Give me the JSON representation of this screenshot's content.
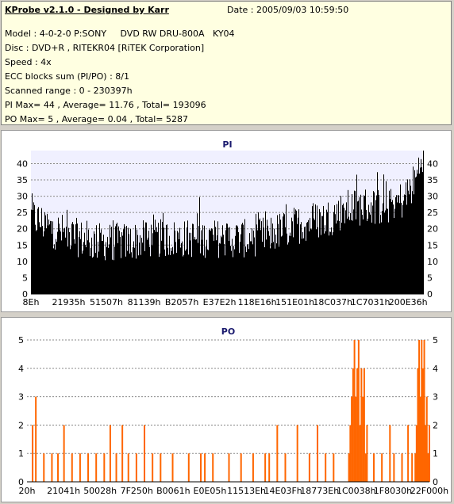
{
  "header": {
    "app_title": "KProbe v2.1.0 - Designed by Karr",
    "date": "Date : 2005/09/03 10:59:50",
    "lines": [
      "Model : 4-0-2-0 P:SONY     DVD RW DRU-800A   KY04",
      "Disc : DVD+R , RITEKR04 [RiTEK Corporation]",
      "Speed : 4x",
      "ECC blocks sum (PI/PO) : 8/1",
      "Scanned range : 0 - 230397h",
      "PI Max= 44 , Average= 11.76 , Total= 193096",
      "PO Max= 5 , Average= 0.04 , Total= 5287"
    ]
  },
  "chart_data": [
    {
      "type": "bar",
      "title": "PI",
      "xlabel": "",
      "ylabel": "",
      "ylim": [
        0,
        44
      ],
      "yticks": [
        0,
        5,
        10,
        15,
        20,
        25,
        30,
        35,
        40
      ],
      "x_tick_labels": [
        "8Eh",
        "21935h",
        "51507h",
        "81139h",
        "B2057h",
        "E37E2h",
        "118E16h",
        "151E01h",
        "18C037h",
        "1C7031h",
        "200E36h"
      ],
      "grid": true,
      "color": "#000000",
      "max": 44,
      "average": 11.76,
      "profile": [
        [
          0,
          24
        ],
        [
          0.05,
          20
        ],
        [
          0.1,
          18
        ],
        [
          0.15,
          16
        ],
        [
          0.2,
          16
        ],
        [
          0.25,
          16
        ],
        [
          0.3,
          17
        ],
        [
          0.35,
          17
        ],
        [
          0.4,
          17
        ],
        [
          0.45,
          17
        ],
        [
          0.5,
          17
        ],
        [
          0.55,
          17
        ],
        [
          0.6,
          18
        ],
        [
          0.65,
          20
        ],
        [
          0.7,
          22
        ],
        [
          0.75,
          23
        ],
        [
          0.8,
          26
        ],
        [
          0.85,
          27
        ],
        [
          0.9,
          27
        ],
        [
          0.95,
          29
        ],
        [
          0.98,
          35
        ],
        [
          1.0,
          44
        ]
      ]
    },
    {
      "type": "bar",
      "title": "PO",
      "xlabel": "",
      "ylabel": "",
      "ylim": [
        0,
        5
      ],
      "yticks": [
        0,
        1,
        2,
        3,
        4,
        5
      ],
      "x_tick_labels": [
        "20h",
        "21041h",
        "50028h",
        "7F250h",
        "B0061h",
        "E0E05h",
        "11513Eh",
        "14E03Fh",
        "18773Eh",
        "1C0038h",
        "1F8030h",
        "22F000h"
      ],
      "grid": true,
      "color": "#ff6600",
      "max": 5,
      "average": 0.04,
      "spikes": [
        [
          0.012,
          2
        ],
        [
          0.02,
          3
        ],
        [
          0.04,
          1
        ],
        [
          0.06,
          1
        ],
        [
          0.075,
          1
        ],
        [
          0.09,
          2
        ],
        [
          0.11,
          1
        ],
        [
          0.13,
          1
        ],
        [
          0.15,
          1
        ],
        [
          0.17,
          1
        ],
        [
          0.19,
          1
        ],
        [
          0.205,
          2
        ],
        [
          0.22,
          1
        ],
        [
          0.235,
          2
        ],
        [
          0.25,
          1
        ],
        [
          0.27,
          1
        ],
        [
          0.29,
          2
        ],
        [
          0.31,
          1
        ],
        [
          0.33,
          1
        ],
        [
          0.36,
          1
        ],
        [
          0.4,
          1
        ],
        [
          0.43,
          1
        ],
        [
          0.44,
          1
        ],
        [
          0.46,
          1
        ],
        [
          0.5,
          1
        ],
        [
          0.53,
          1
        ],
        [
          0.56,
          1
        ],
        [
          0.59,
          1
        ],
        [
          0.6,
          1
        ],
        [
          0.62,
          2
        ],
        [
          0.64,
          1
        ],
        [
          0.67,
          2
        ],
        [
          0.7,
          1
        ],
        [
          0.72,
          2
        ],
        [
          0.74,
          1
        ],
        [
          0.76,
          1
        ]
      ],
      "clusters": [
        {
          "start": 0.8,
          "end": 0.845,
          "heights": [
            1,
            2,
            3,
            4,
            5,
            3,
            4,
            5,
            2,
            4,
            3,
            4,
            1,
            2
          ]
        },
        {
          "start": 0.965,
          "end": 1.0,
          "heights": [
            1,
            2,
            4,
            5,
            3,
            5,
            4,
            5,
            2,
            3,
            1,
            2
          ]
        }
      ],
      "tail_spikes": [
        [
          0.86,
          1
        ],
        [
          0.88,
          1
        ],
        [
          0.9,
          2
        ],
        [
          0.91,
          1
        ],
        [
          0.93,
          1
        ],
        [
          0.945,
          2
        ],
        [
          0.955,
          1
        ]
      ]
    }
  ]
}
